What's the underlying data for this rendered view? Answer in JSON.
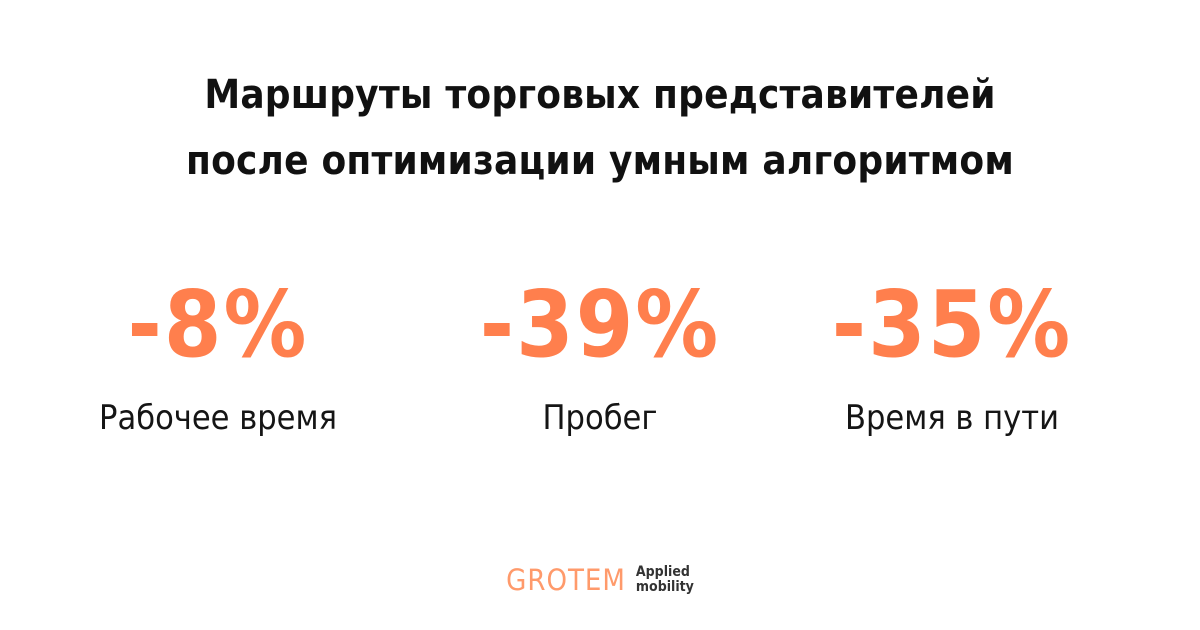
{
  "heading": {
    "line1": "Маршруты торговых представителей",
    "line2": "после оптимизации умным алгоритмом"
  },
  "stats": [
    {
      "value": "-8%",
      "label": "Рабочее время"
    },
    {
      "value": "-39%",
      "label": "Пробег"
    },
    {
      "value": "-35%",
      "label": "Время в пути"
    }
  ],
  "brand": {
    "name": "GROTEM",
    "tag_line1": "Applied",
    "tag_line2": "mobility"
  },
  "colors": {
    "accent": "#ff7f4d",
    "brand": "#ff9a6b",
    "text": "#111111",
    "background": "#ffffff"
  }
}
